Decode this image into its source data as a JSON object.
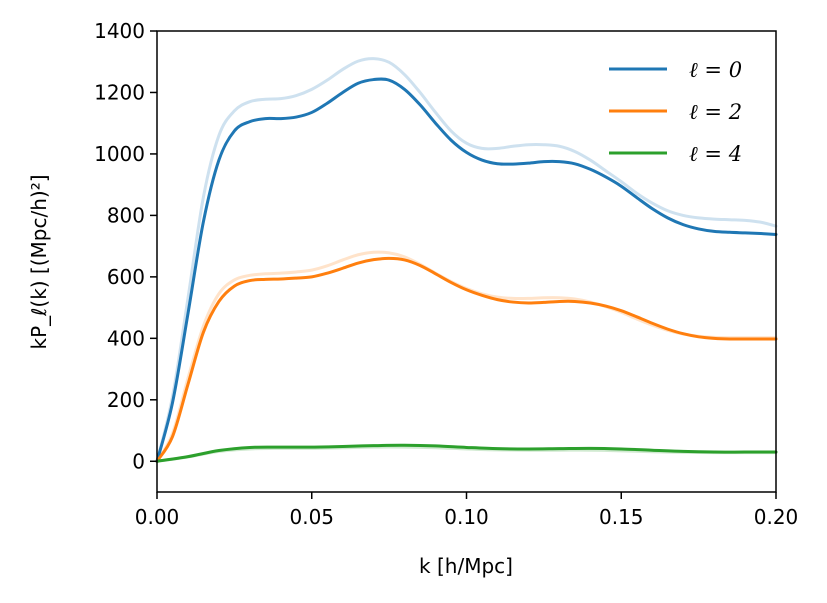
{
  "chart_data": {
    "type": "line",
    "xlabel": "k [h/Mpc]",
    "ylabel": "kP_ℓ(k) [(Mpc/h)²]",
    "xlim": [
      0.0,
      0.2
    ],
    "ylim": [
      -100,
      1400
    ],
    "xticks": [
      "0.00",
      "0.05",
      "0.10",
      "0.15",
      "0.20"
    ],
    "yticks": [
      "0",
      "200",
      "400",
      "600",
      "800",
      "1000",
      "1200",
      "1400"
    ],
    "legend_position": "top-right",
    "grid": false,
    "series": [
      {
        "name": "ℓ = 0",
        "color": "#1f77b4",
        "x": [
          0.0,
          0.005,
          0.01,
          0.015,
          0.02,
          0.025,
          0.03,
          0.035,
          0.04,
          0.045,
          0.05,
          0.055,
          0.06,
          0.065,
          0.07,
          0.075,
          0.08,
          0.085,
          0.09,
          0.095,
          0.1,
          0.105,
          0.11,
          0.115,
          0.12,
          0.125,
          0.13,
          0.135,
          0.14,
          0.145,
          0.15,
          0.155,
          0.16,
          0.165,
          0.17,
          0.175,
          0.18,
          0.185,
          0.19,
          0.195,
          0.2
        ],
        "y": [
          0,
          190,
          480,
          780,
          980,
          1075,
          1105,
          1115,
          1115,
          1120,
          1135,
          1165,
          1200,
          1230,
          1242,
          1240,
          1210,
          1160,
          1100,
          1045,
          1005,
          980,
          968,
          967,
          970,
          975,
          975,
          968,
          950,
          925,
          895,
          858,
          822,
          792,
          770,
          756,
          748,
          745,
          743,
          741,
          738
        ]
      },
      {
        "name": "ℓ = 2",
        "color": "#ff7f0e",
        "x": [
          0.0,
          0.005,
          0.01,
          0.015,
          0.02,
          0.025,
          0.03,
          0.035,
          0.04,
          0.045,
          0.05,
          0.055,
          0.06,
          0.065,
          0.07,
          0.075,
          0.08,
          0.085,
          0.09,
          0.095,
          0.1,
          0.105,
          0.11,
          0.115,
          0.12,
          0.125,
          0.13,
          0.135,
          0.14,
          0.145,
          0.15,
          0.155,
          0.16,
          0.165,
          0.17,
          0.175,
          0.18,
          0.185,
          0.19,
          0.195,
          0.2
        ],
        "y": [
          0,
          80,
          250,
          420,
          520,
          570,
          588,
          592,
          593,
          596,
          600,
          612,
          628,
          645,
          656,
          660,
          655,
          637,
          610,
          582,
          558,
          540,
          526,
          518,
          515,
          517,
          520,
          520,
          515,
          505,
          490,
          470,
          449,
          430,
          415,
          405,
          400,
          398,
          398,
          398,
          398
        ]
      },
      {
        "name": "ℓ = 4",
        "color": "#2ca02c",
        "x": [
          0.0,
          0.01,
          0.02,
          0.03,
          0.04,
          0.05,
          0.06,
          0.07,
          0.08,
          0.09,
          0.1,
          0.11,
          0.12,
          0.13,
          0.14,
          0.15,
          0.16,
          0.17,
          0.18,
          0.19,
          0.2
        ],
        "y": [
          0,
          15,
          35,
          45,
          46,
          46,
          48,
          51,
          52,
          50,
          45,
          41,
          40,
          41,
          42,
          40,
          36,
          32,
          30,
          30,
          30
        ]
      },
      {
        "color": "#1f77b4",
        "faint": true,
        "x": [
          0.0,
          0.005,
          0.01,
          0.015,
          0.02,
          0.025,
          0.03,
          0.035,
          0.04,
          0.045,
          0.05,
          0.055,
          0.06,
          0.065,
          0.07,
          0.075,
          0.08,
          0.085,
          0.09,
          0.095,
          0.1,
          0.105,
          0.11,
          0.115,
          0.12,
          0.125,
          0.13,
          0.135,
          0.14,
          0.145,
          0.15,
          0.155,
          0.16,
          0.165,
          0.17,
          0.175,
          0.18,
          0.185,
          0.19,
          0.195,
          0.2
        ],
        "y": [
          0,
          210,
          530,
          860,
          1060,
          1140,
          1170,
          1178,
          1180,
          1190,
          1210,
          1240,
          1275,
          1302,
          1310,
          1298,
          1258,
          1200,
          1135,
          1075,
          1035,
          1018,
          1018,
          1025,
          1030,
          1030,
          1025,
          1008,
          980,
          945,
          910,
          872,
          840,
          815,
          800,
          792,
          788,
          786,
          784,
          778,
          765
        ]
      },
      {
        "color": "#ff7f0e",
        "faint": true,
        "x": [
          0.0,
          0.005,
          0.01,
          0.015,
          0.02,
          0.025,
          0.03,
          0.035,
          0.04,
          0.045,
          0.05,
          0.055,
          0.06,
          0.065,
          0.07,
          0.075,
          0.08,
          0.085,
          0.09,
          0.095,
          0.1,
          0.105,
          0.11,
          0.115,
          0.12,
          0.125,
          0.13,
          0.135,
          0.14,
          0.145,
          0.15,
          0.155,
          0.16,
          0.165,
          0.17,
          0.175,
          0.18,
          0.185,
          0.19,
          0.195,
          0.2
        ],
        "y": [
          0,
          90,
          270,
          440,
          545,
          590,
          605,
          610,
          612,
          616,
          622,
          636,
          655,
          672,
          680,
          678,
          665,
          641,
          612,
          585,
          562,
          545,
          534,
          530,
          530,
          532,
          532,
          528,
          518,
          503,
          485,
          463,
          443,
          426,
          414,
          407,
          403,
          402,
          402,
          402,
          402
        ]
      },
      {
        "color": "#2ca02c",
        "faint": true,
        "x": [
          0.0,
          0.01,
          0.02,
          0.03,
          0.04,
          0.05,
          0.06,
          0.07,
          0.08,
          0.09,
          0.1,
          0.11,
          0.12,
          0.13,
          0.14,
          0.15,
          0.16,
          0.17,
          0.18,
          0.19,
          0.2
        ],
        "y": [
          0,
          14,
          32,
          40,
          42,
          42,
          44,
          46,
          46,
          44,
          40,
          37,
          36,
          36,
          36,
          34,
          31,
          29,
          28,
          28,
          28
        ]
      }
    ]
  }
}
